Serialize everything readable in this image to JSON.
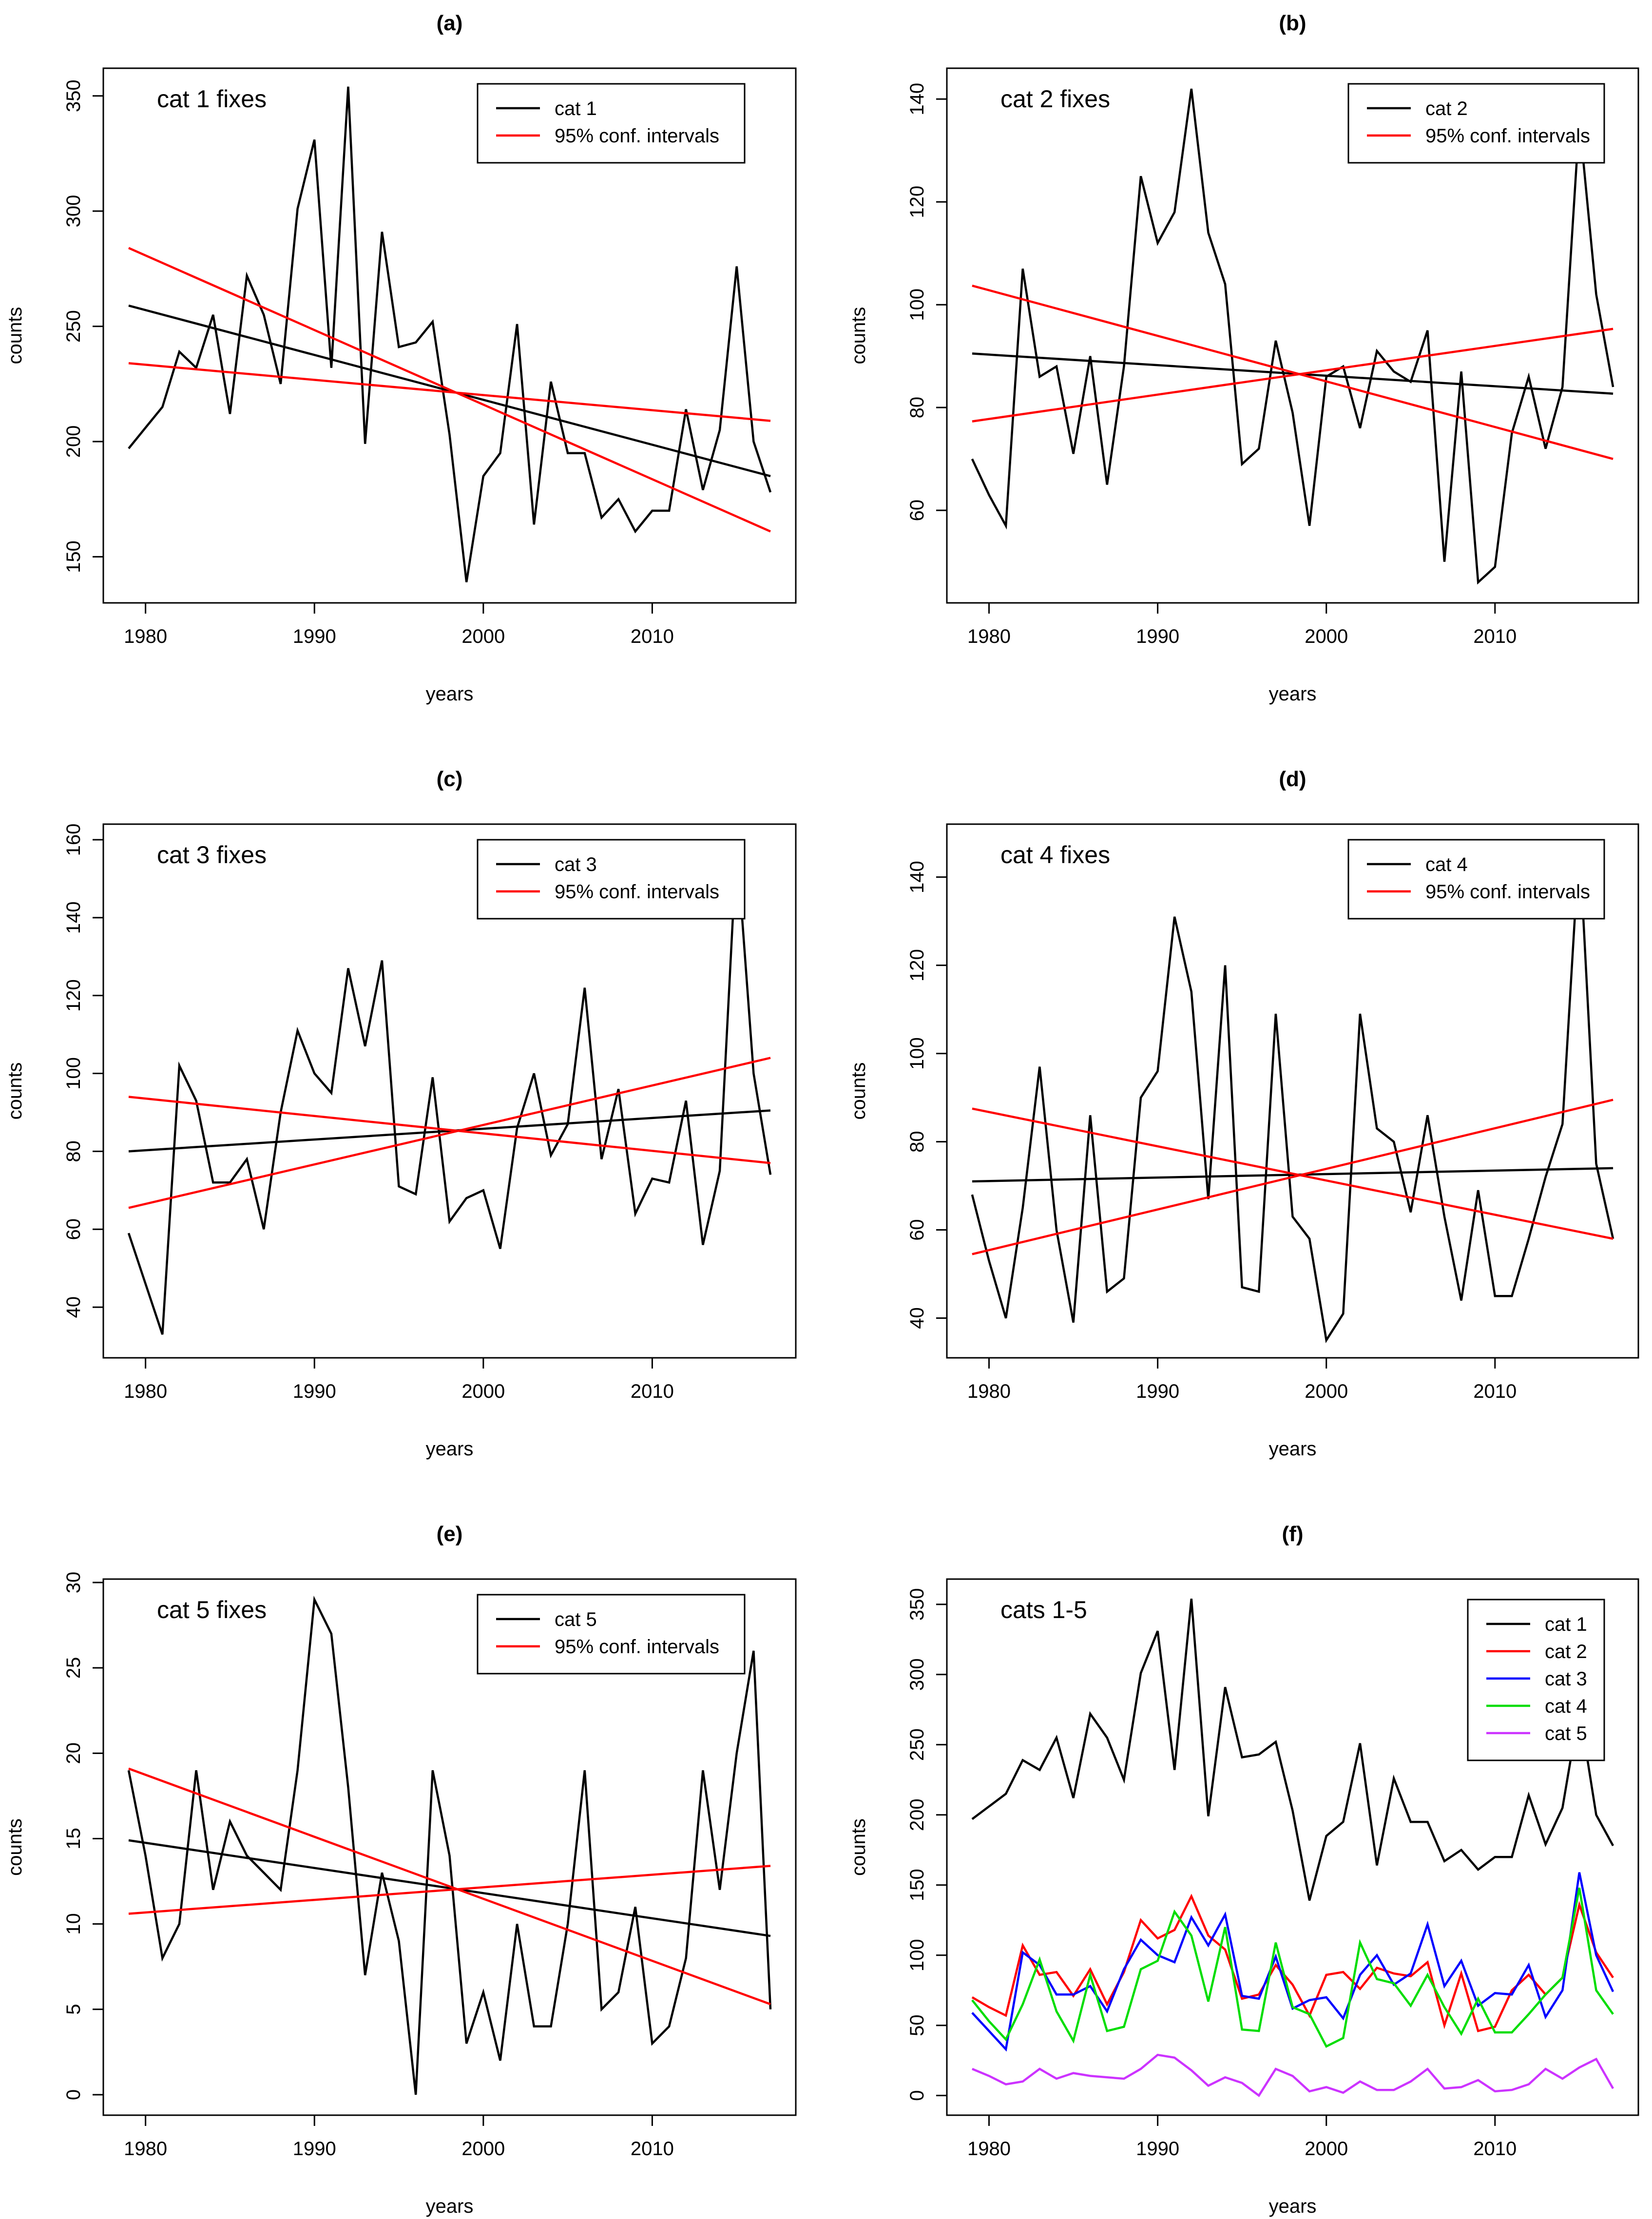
{
  "figure": {
    "panels_count": 6
  },
  "chart_data": [
    {
      "panel_label": "(a)",
      "type": "line",
      "inset_title": "cat 1 fixes",
      "xlabel": "years",
      "ylabel": "counts",
      "xlim": [
        1977.5,
        2018.5
      ],
      "ylim": [
        130,
        362
      ],
      "xticks": [
        1980,
        1990,
        2000,
        2010
      ],
      "yticks": [
        150,
        200,
        250,
        300,
        350
      ],
      "legend": {
        "placement": "top-right",
        "entries": [
          {
            "label": "cat 1",
            "color": "#000000"
          },
          {
            "label": "95% conf. intervals",
            "color": "#ff0000"
          }
        ]
      },
      "x": [
        1979,
        1980,
        1981,
        1982,
        1983,
        1984,
        1985,
        1986,
        1987,
        1988,
        1989,
        1990,
        1991,
        1992,
        1993,
        1994,
        1995,
        1996,
        1997,
        1998,
        1999,
        2000,
        2001,
        2002,
        2003,
        2004,
        2005,
        2006,
        2007,
        2008,
        2009,
        2010,
        2011,
        2012,
        2013,
        2014,
        2015,
        2016,
        2017
      ],
      "series": [
        {
          "name": "cat 1",
          "color": "#000000",
          "values": [
            197,
            206,
            215,
            239,
            232,
            255,
            212,
            272,
            255,
            225,
            301,
            331,
            232,
            354,
            199,
            291,
            241,
            243,
            252,
            203,
            139,
            185,
            195,
            251,
            164,
            226,
            195,
            195,
            167,
            175,
            161,
            170,
            170,
            214,
            179,
            205,
            276,
            200,
            178
          ]
        }
      ],
      "trend_lines": [
        {
          "name": "trend",
          "color": "#000000",
          "from": [
            1979,
            259
          ],
          "to": [
            2017,
            185
          ]
        },
        {
          "name": "95% conf. upper",
          "color": "#ff0000",
          "from": [
            1979,
            284
          ],
          "to": [
            2017,
            161
          ]
        },
        {
          "name": "95% conf. lower",
          "color": "#ff0000",
          "from": [
            1979,
            234
          ],
          "to": [
            2017,
            209
          ]
        }
      ]
    },
    {
      "panel_label": "(b)",
      "type": "line",
      "inset_title": "cat 2 fixes",
      "xlabel": "years",
      "ylabel": "counts",
      "xlim": [
        1977.5,
        2018.5
      ],
      "ylim": [
        42,
        146
      ],
      "xticks": [
        1980,
        1990,
        2000,
        2010
      ],
      "yticks": [
        60,
        80,
        100,
        120,
        140
      ],
      "legend": {
        "placement": "top-right",
        "entries": [
          {
            "label": "cat 2",
            "color": "#000000"
          },
          {
            "label": "95% conf. intervals",
            "color": "#ff0000"
          }
        ]
      },
      "x": [
        1979,
        1980,
        1981,
        1982,
        1983,
        1984,
        1985,
        1986,
        1987,
        1988,
        1989,
        1990,
        1991,
        1992,
        1993,
        1994,
        1995,
        1996,
        1997,
        1998,
        1999,
        2000,
        2001,
        2002,
        2003,
        2004,
        2005,
        2006,
        2007,
        2008,
        2009,
        2010,
        2011,
        2012,
        2013,
        2014,
        2015,
        2016,
        2017
      ],
      "series": [
        {
          "name": "cat 2",
          "color": "#000000",
          "values": [
            70,
            63,
            57,
            107,
            86,
            88,
            71,
            90,
            65,
            88,
            125,
            112,
            118,
            142,
            114,
            104,
            69,
            72,
            93,
            79,
            57,
            86,
            88,
            76,
            91,
            87,
            85,
            95,
            50,
            87,
            46,
            49,
            75,
            86,
            72,
            84,
            136,
            102,
            84
          ]
        }
      ],
      "trend_lines": [
        {
          "name": "trend",
          "color": "#000000",
          "from": [
            1979,
            90.5
          ],
          "to": [
            2017,
            82.7
          ]
        },
        {
          "name": "95% conf. upper",
          "color": "#ff0000",
          "from": [
            1979,
            103.7
          ],
          "to": [
            2017,
            70
          ]
        },
        {
          "name": "95% conf. lower",
          "color": "#ff0000",
          "from": [
            1979,
            77.3
          ],
          "to": [
            2017,
            95.3
          ]
        }
      ]
    },
    {
      "panel_label": "(c)",
      "type": "line",
      "inset_title": "cat 3 fixes",
      "xlabel": "years",
      "ylabel": "counts",
      "xlim": [
        1977.5,
        2018.5
      ],
      "ylim": [
        27,
        164
      ],
      "xticks": [
        1980,
        1990,
        2000,
        2010
      ],
      "yticks": [
        40,
        60,
        80,
        100,
        120,
        140,
        160
      ],
      "legend": {
        "placement": "top-right",
        "entries": [
          {
            "label": "cat 3",
            "color": "#000000"
          },
          {
            "label": "95% conf. intervals",
            "color": "#ff0000"
          }
        ]
      },
      "x": [
        1979,
        1980,
        1981,
        1982,
        1983,
        1984,
        1985,
        1986,
        1987,
        1988,
        1989,
        1990,
        1991,
        1992,
        1993,
        1994,
        1995,
        1996,
        1997,
        1998,
        1999,
        2000,
        2001,
        2002,
        2003,
        2004,
        2005,
        2006,
        2007,
        2008,
        2009,
        2010,
        2011,
        2012,
        2013,
        2014,
        2015,
        2016,
        2017
      ],
      "series": [
        {
          "name": "cat 3",
          "color": "#000000",
          "values": [
            59,
            46,
            33,
            102,
            93,
            72,
            72,
            78,
            60,
            90,
            111,
            100,
            95,
            127,
            107,
            129,
            71,
            69,
            99,
            62,
            68,
            70,
            55,
            86,
            100,
            79,
            87,
            122,
            78,
            96,
            64,
            73,
            72,
            93,
            56,
            75,
            159,
            100,
            74
          ]
        }
      ],
      "trend_lines": [
        {
          "name": "trend",
          "color": "#000000",
          "from": [
            1979,
            80
          ],
          "to": [
            2017,
            90.5
          ]
        },
        {
          "name": "95% conf. upper",
          "color": "#ff0000",
          "from": [
            1979,
            94
          ],
          "to": [
            2017,
            77
          ]
        },
        {
          "name": "95% conf. lower",
          "color": "#ff0000",
          "from": [
            1979,
            65.5
          ],
          "to": [
            2017,
            104
          ]
        }
      ]
    },
    {
      "panel_label": "(d)",
      "type": "line",
      "inset_title": "cat 4 fixes",
      "xlabel": "years",
      "ylabel": "counts",
      "xlim": [
        1977.5,
        2018.5
      ],
      "ylim": [
        31,
        152
      ],
      "xticks": [
        1980,
        1990,
        2000,
        2010
      ],
      "yticks": [
        40,
        60,
        80,
        100,
        120,
        140
      ],
      "legend": {
        "placement": "top-right",
        "entries": [
          {
            "label": "cat 4",
            "color": "#000000"
          },
          {
            "label": "95% conf. intervals",
            "color": "#ff0000"
          }
        ]
      },
      "x": [
        1979,
        1980,
        1981,
        1982,
        1983,
        1984,
        1985,
        1986,
        1987,
        1988,
        1989,
        1990,
        1991,
        1992,
        1993,
        1994,
        1995,
        1996,
        1997,
        1998,
        1999,
        2000,
        2001,
        2002,
        2003,
        2004,
        2005,
        2006,
        2007,
        2008,
        2009,
        2010,
        2011,
        2012,
        2013,
        2014,
        2015,
        2016,
        2017
      ],
      "series": [
        {
          "name": "cat 4",
          "color": "#000000",
          "values": [
            68,
            53,
            40,
            65,
            97,
            60,
            39,
            86,
            46,
            49,
            90,
            96,
            131,
            114,
            67,
            120,
            47,
            46,
            109,
            63,
            58,
            35,
            41,
            109,
            83,
            80,
            64,
            86,
            63,
            44,
            69,
            45,
            45,
            58,
            72,
            84,
            148,
            75,
            58
          ]
        }
      ],
      "trend_lines": [
        {
          "name": "trend",
          "color": "#000000",
          "from": [
            1979,
            71
          ],
          "to": [
            2017,
            74
          ]
        },
        {
          "name": "95% conf. upper",
          "color": "#ff0000",
          "from": [
            1979,
            87.5
          ],
          "to": [
            2017,
            58
          ]
        },
        {
          "name": "95% conf. lower",
          "color": "#ff0000",
          "from": [
            1979,
            54.5
          ],
          "to": [
            2017,
            89.5
          ]
        }
      ]
    },
    {
      "panel_label": "(e)",
      "type": "line",
      "inset_title": "cat 5 fixes",
      "xlabel": "years",
      "ylabel": "counts",
      "xlim": [
        1977.5,
        2018.5
      ],
      "ylim": [
        -1.2,
        30.2
      ],
      "xticks": [
        1980,
        1990,
        2000,
        2010
      ],
      "yticks": [
        0,
        5,
        10,
        15,
        20,
        25,
        30
      ],
      "legend": {
        "placement": "top-right",
        "entries": [
          {
            "label": "cat 5",
            "color": "#000000"
          },
          {
            "label": "95% conf. intervals",
            "color": "#ff0000"
          }
        ]
      },
      "x": [
        1979,
        1980,
        1981,
        1982,
        1983,
        1984,
        1985,
        1986,
        1987,
        1988,
        1989,
        1990,
        1991,
        1992,
        1993,
        1994,
        1995,
        1996,
        1997,
        1998,
        1999,
        2000,
        2001,
        2002,
        2003,
        2004,
        2005,
        2006,
        2007,
        2008,
        2009,
        2010,
        2011,
        2012,
        2013,
        2014,
        2015,
        2016,
        2017
      ],
      "series": [
        {
          "name": "cat 5",
          "color": "#000000",
          "values": [
            19,
            14,
            8,
            10,
            19,
            12,
            16,
            14,
            13,
            12,
            19,
            29,
            27,
            18,
            7,
            13,
            9,
            0,
            19,
            14,
            3,
            6,
            2,
            10,
            4,
            4,
            10,
            19,
            5,
            6,
            11,
            3,
            4,
            8,
            19,
            12,
            20,
            26,
            5
          ]
        }
      ],
      "trend_lines": [
        {
          "name": "trend",
          "color": "#000000",
          "from": [
            1979,
            14.9
          ],
          "to": [
            2017,
            9.3
          ]
        },
        {
          "name": "95% conf. upper",
          "color": "#ff0000",
          "from": [
            1979,
            19.1
          ],
          "to": [
            2017,
            5.3
          ]
        },
        {
          "name": "95% conf. lower",
          "color": "#ff0000",
          "from": [
            1979,
            10.6
          ],
          "to": [
            2017,
            13.4
          ]
        }
      ]
    },
    {
      "panel_label": "(f)",
      "type": "line",
      "inset_title": "cats 1-5",
      "xlabel": "years",
      "ylabel": "counts",
      "xlim": [
        1977.5,
        2018.5
      ],
      "ylim": [
        -14,
        368
      ],
      "xticks": [
        1980,
        1990,
        2000,
        2010
      ],
      "yticks": [
        0,
        50,
        100,
        150,
        200,
        250,
        300,
        350
      ],
      "legend": {
        "placement": "top-right",
        "entries": [
          {
            "label": "cat 1",
            "color": "#000000"
          },
          {
            "label": "cat 2",
            "color": "#ff0000"
          },
          {
            "label": "cat 3",
            "color": "#0000ff"
          },
          {
            "label": "cat 4",
            "color": "#00dd00"
          },
          {
            "label": "cat 5",
            "color": "#cc33ff"
          }
        ]
      },
      "x": [
        1979,
        1980,
        1981,
        1982,
        1983,
        1984,
        1985,
        1986,
        1987,
        1988,
        1989,
        1990,
        1991,
        1992,
        1993,
        1994,
        1995,
        1996,
        1997,
        1998,
        1999,
        2000,
        2001,
        2002,
        2003,
        2004,
        2005,
        2006,
        2007,
        2008,
        2009,
        2010,
        2011,
        2012,
        2013,
        2014,
        2015,
        2016,
        2017
      ],
      "series": [
        {
          "name": "cat 1",
          "color": "#000000",
          "values": [
            197,
            206,
            215,
            239,
            232,
            255,
            212,
            272,
            255,
            225,
            301,
            331,
            232,
            354,
            199,
            291,
            241,
            243,
            252,
            203,
            139,
            185,
            195,
            251,
            164,
            226,
            195,
            195,
            167,
            175,
            161,
            170,
            170,
            214,
            179,
            205,
            276,
            200,
            178
          ]
        },
        {
          "name": "cat 2",
          "color": "#ff0000",
          "values": [
            70,
            63,
            57,
            107,
            86,
            88,
            71,
            90,
            65,
            88,
            125,
            112,
            118,
            142,
            114,
            104,
            69,
            72,
            93,
            79,
            57,
            86,
            88,
            76,
            91,
            87,
            85,
            95,
            50,
            87,
            46,
            49,
            75,
            86,
            72,
            84,
            136,
            102,
            84
          ]
        },
        {
          "name": "cat 3",
          "color": "#0000ff",
          "values": [
            59,
            46,
            33,
            102,
            93,
            72,
            72,
            78,
            60,
            90,
            111,
            100,
            95,
            127,
            107,
            129,
            71,
            69,
            99,
            62,
            68,
            70,
            55,
            86,
            100,
            79,
            87,
            122,
            78,
            96,
            64,
            73,
            72,
            93,
            56,
            75,
            159,
            100,
            74
          ]
        },
        {
          "name": "cat 4",
          "color": "#00dd00",
          "values": [
            68,
            53,
            40,
            65,
            97,
            60,
            39,
            86,
            46,
            49,
            90,
            96,
            131,
            114,
            67,
            120,
            47,
            46,
            109,
            63,
            58,
            35,
            41,
            109,
            83,
            80,
            64,
            86,
            63,
            44,
            69,
            45,
            45,
            58,
            72,
            84,
            148,
            75,
            58
          ]
        },
        {
          "name": "cat 5",
          "color": "#cc33ff",
          "values": [
            19,
            14,
            8,
            10,
            19,
            12,
            16,
            14,
            13,
            12,
            19,
            29,
            27,
            18,
            7,
            13,
            9,
            0,
            19,
            14,
            3,
            6,
            2,
            10,
            4,
            4,
            10,
            19,
            5,
            6,
            11,
            3,
            4,
            8,
            19,
            12,
            20,
            26,
            5
          ]
        }
      ],
      "trend_lines": []
    }
  ]
}
